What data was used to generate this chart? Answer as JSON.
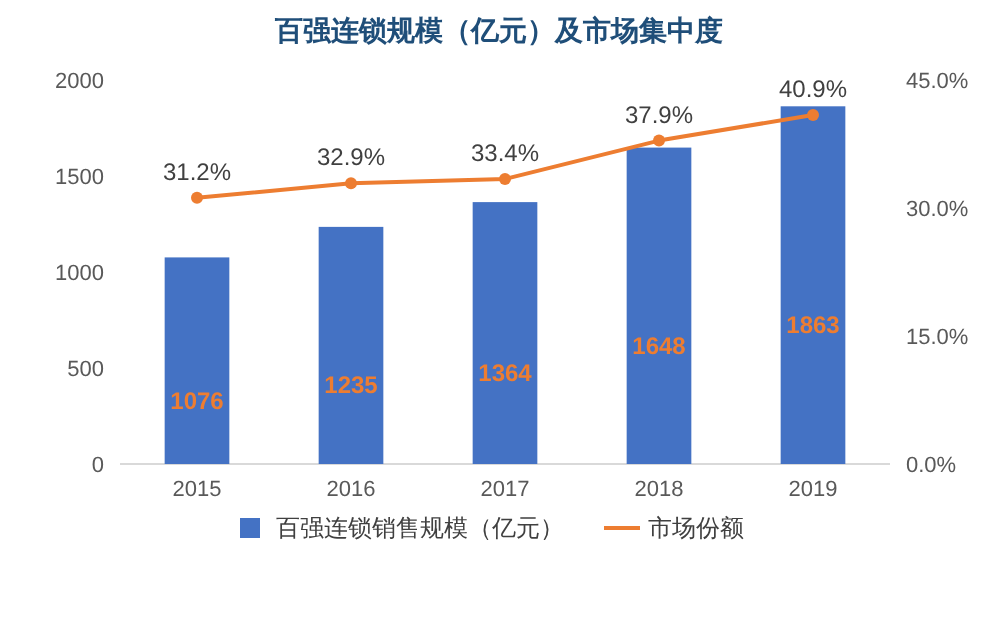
{
  "chart_data": {
    "type": "bar",
    "title": "百强连锁规模（亿元）及市场集中度",
    "categories": [
      "2015",
      "2016",
      "2017",
      "2018",
      "2019"
    ],
    "series": [
      {
        "name": "百强连锁销售规模（亿元）",
        "color": "#4472c4",
        "values": [
          1076,
          1235,
          1364,
          1648,
          1863
        ],
        "value_labels": [
          "1076",
          "1235",
          "1364",
          "1648",
          "1863"
        ]
      },
      {
        "name": "市场份额",
        "type": "line",
        "axis": "y2",
        "color": "#ed7d31",
        "marker": "circle",
        "values": [
          31.2,
          32.9,
          33.4,
          37.9,
          40.9
        ],
        "value_labels": [
          "31.2%",
          "32.9%",
          "33.4%",
          "37.9%",
          "40.9%"
        ]
      }
    ],
    "ylim": [
      0,
      2000
    ],
    "yticks": [
      0,
      500,
      1000,
      1500,
      2000
    ],
    "y2lim": [
      0,
      45
    ],
    "y2ticks": [
      {
        "value": 0,
        "label": "0.0%"
      },
      {
        "value": 15,
        "label": "15.0%"
      },
      {
        "value": 30,
        "label": "30.0%"
      },
      {
        "value": 45,
        "label": "45.0%"
      }
    ],
    "grid": false,
    "legend": "bottom"
  }
}
